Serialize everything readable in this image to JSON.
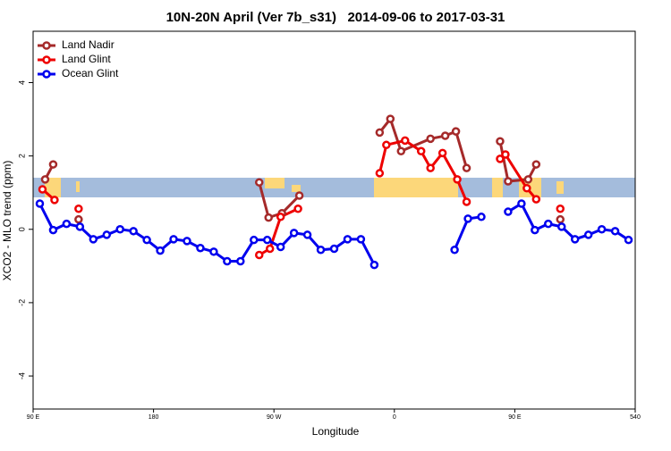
{
  "chart_data": {
    "type": "line",
    "title": "10N-20N April (Ver 7b_s31)   2014-09-06 to 2017-03-31",
    "x_label": "Longitude",
    "y_label": "XCO2 - MLO trend (ppm)",
    "xlim": [
      90,
      540
    ],
    "ylim": [
      -4.9,
      5.4
    ],
    "xticks": [
      {
        "value": 90,
        "label": "90 E"
      },
      180,
      {
        "value": 270,
        "label": "90 W"
      },
      {
        "value": 360,
        "label": "0"
      },
      {
        "value": 450,
        "label": "90 E"
      },
      540
    ],
    "yticks": [
      4,
      2,
      0,
      -2,
      -4
    ],
    "legend": "top-left",
    "series": [
      {
        "name": "Land Nadir",
        "color": "#a52a2a",
        "x": [
          99,
          105,
          null,
          124,
          null,
          259,
          266,
          276,
          289,
          null,
          349,
          357,
          365,
          387,
          398,
          406,
          414,
          null,
          439,
          445,
          460,
          466,
          null,
          484
        ],
        "values": [
          1.36,
          1.77,
          null,
          0.27,
          null,
          1.28,
          0.32,
          0.44,
          0.92,
          null,
          2.64,
          3.01,
          2.13,
          2.47,
          2.55,
          2.67,
          1.67,
          null,
          2.4,
          1.31,
          1.36,
          1.77,
          null,
          0.27
        ]
      },
      {
        "name": "Land Glint",
        "color": "#ee0000",
        "x": [
          97,
          106,
          null,
          124,
          null,
          259,
          267,
          275,
          288,
          null,
          349,
          354,
          368,
          380,
          387,
          396,
          407,
          414,
          null,
          439,
          443,
          459,
          466,
          null,
          484
        ],
        "values": [
          1.09,
          0.8,
          null,
          0.56,
          null,
          -0.7,
          -0.53,
          0.34,
          0.56,
          null,
          1.53,
          2.3,
          2.42,
          2.13,
          1.67,
          2.08,
          1.36,
          0.75,
          null,
          1.92,
          2.04,
          1.12,
          0.82,
          null,
          0.56
        ]
      },
      {
        "name": "Ocean Glint",
        "color": "#0000ee",
        "x": [
          95,
          105,
          115,
          125,
          135,
          145,
          155,
          165,
          175,
          185,
          195,
          205,
          215,
          225,
          235,
          245,
          255,
          265,
          275,
          285,
          295,
          305,
          315,
          325,
          335,
          345,
          null,
          405,
          415,
          425,
          null,
          445,
          455,
          465,
          475,
          485,
          495,
          505,
          515,
          525,
          535
        ],
        "values": [
          0.7,
          -0.02,
          0.15,
          0.07,
          -0.27,
          -0.15,
          0,
          -0.05,
          -0.29,
          -0.58,
          -0.27,
          -0.32,
          -0.51,
          -0.61,
          -0.87,
          -0.87,
          -0.29,
          -0.29,
          -0.48,
          -0.1,
          -0.15,
          -0.56,
          -0.53,
          -0.27,
          -0.27,
          -0.97,
          null,
          -0.56,
          0.29,
          0.34,
          null,
          0.48,
          0.7,
          -0.02,
          0.15,
          0.07,
          -0.27,
          -0.15,
          0,
          -0.05,
          -0.29
        ]
      }
    ]
  }
}
